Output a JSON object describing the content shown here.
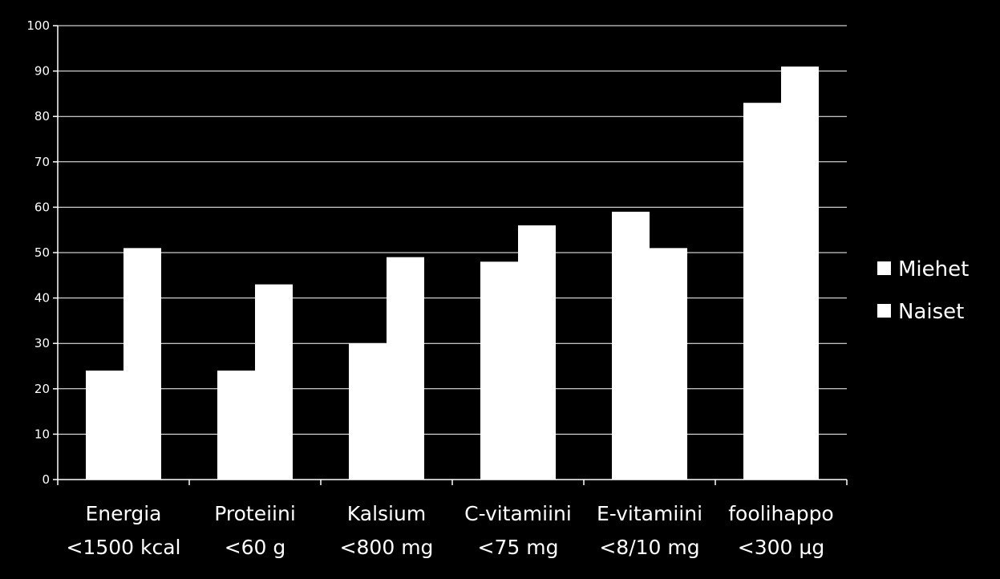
{
  "chart_data": {
    "type": "bar",
    "categories": [
      [
        "Energia",
        "<1500 kcal"
      ],
      [
        "Proteiini",
        "<60 g"
      ],
      [
        "Kalsium",
        "<800 mg"
      ],
      [
        "C-vitamiini",
        "<75 mg"
      ],
      [
        "E-vitamiini",
        "<8/10 mg"
      ],
      [
        "foolihappo",
        "<300 µg"
      ]
    ],
    "series": [
      {
        "name": "Miehet",
        "values": [
          24,
          24,
          30,
          48,
          59,
          83
        ],
        "color": "#ffffff"
      },
      {
        "name": "Naiset",
        "values": [
          51,
          43,
          49,
          56,
          51,
          91
        ],
        "color": "#ffffff"
      }
    ],
    "ylim": [
      0,
      100
    ],
    "yticks": [
      0,
      10,
      20,
      30,
      40,
      50,
      60,
      70,
      80,
      90,
      100
    ],
    "grid": true,
    "legend": "right",
    "background": "#000000",
    "axis_color": "#ffffff"
  }
}
